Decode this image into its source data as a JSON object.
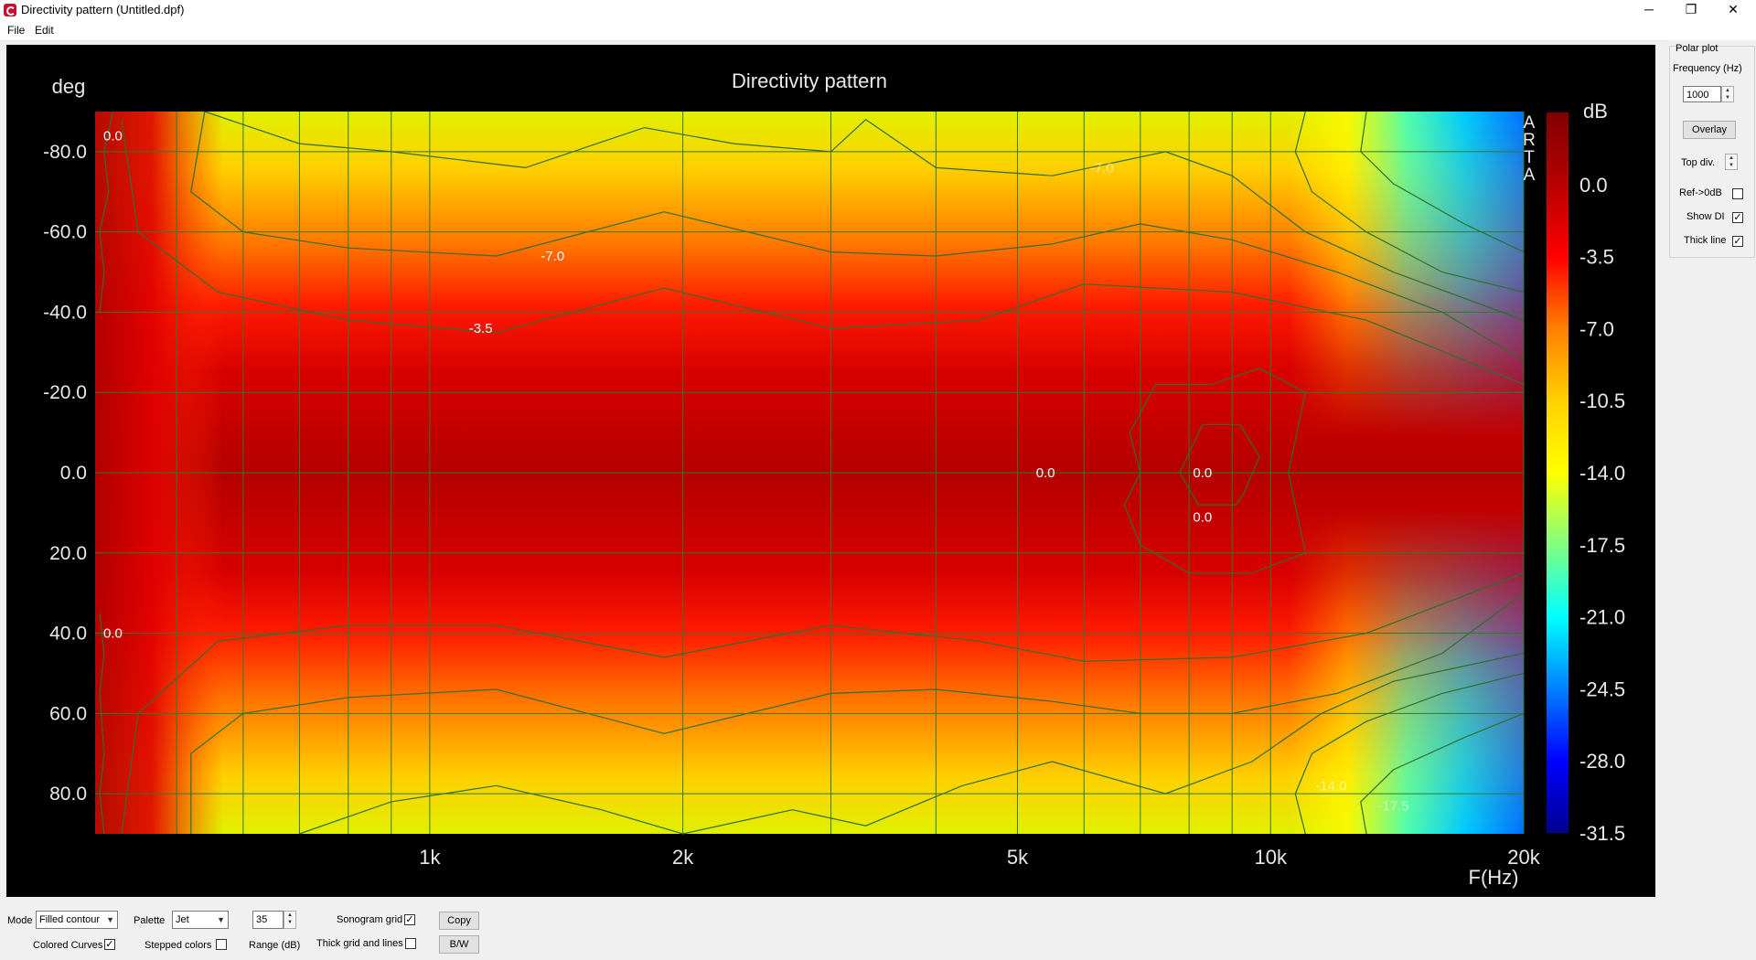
{
  "window": {
    "title": "Directivity pattern (Untitled.dpf)",
    "minimize": "─",
    "maximize": "❐",
    "close": "✕"
  },
  "menu": [
    "File",
    "Edit"
  ],
  "chart_data": {
    "type": "heatmap",
    "title": "Directivity pattern",
    "ylabel": "deg",
    "xlabel": "F(Hz)",
    "xscale": "log",
    "xlim": [
      400,
      20000
    ],
    "ylim": [
      -90,
      90
    ],
    "y_inverted": true,
    "x_ticks": [
      {
        "value": 1000,
        "label": "1k"
      },
      {
        "value": 2000,
        "label": "2k"
      },
      {
        "value": 5000,
        "label": "5k"
      },
      {
        "value": 10000,
        "label": "10k"
      },
      {
        "value": 20000,
        "label": "20k"
      }
    ],
    "x_minor_grid": [
      500,
      600,
      700,
      800,
      900,
      3000,
      4000,
      6000,
      7000,
      8000,
      9000
    ],
    "y_ticks": [
      {
        "value": -80,
        "label": "-80.0"
      },
      {
        "value": -60,
        "label": "-60.0"
      },
      {
        "value": -40,
        "label": "-40.0"
      },
      {
        "value": -20,
        "label": "-20.0"
      },
      {
        "value": 0,
        "label": "0.0"
      },
      {
        "value": 20,
        "label": "20.0"
      },
      {
        "value": 40,
        "label": "40.0"
      },
      {
        "value": 60,
        "label": "60.0"
      },
      {
        "value": 80,
        "label": "80.0"
      }
    ],
    "colorbar": {
      "unit": "dB",
      "range": [
        -31.5,
        3.5
      ],
      "ticks": [
        "0.0",
        "-3.5",
        "-7.0",
        "-10.5",
        "-14.0",
        "-17.5",
        "-21.0",
        "-24.5",
        "-28.0",
        "-31.5"
      ],
      "tick_values": [
        0,
        -3.5,
        -7,
        -10.5,
        -14,
        -17.5,
        -21,
        -24.5,
        -28,
        -31.5
      ],
      "palette": [
        "#800000",
        "#b80000",
        "#ff0000",
        "#ff8000",
        "#ffd000",
        "#ffff00",
        "#80ff80",
        "#00ffff",
        "#0080ff",
        "#0000ff",
        "#00008f"
      ]
    },
    "watermark": "ARTA",
    "contour_labels": [
      {
        "text": "0.0",
        "f": 420,
        "deg": -84
      },
      {
        "text": "-7.0",
        "f": 1400,
        "deg": -54
      },
      {
        "text": "-3.5",
        "f": 1150,
        "deg": -36
      },
      {
        "text": "0.0",
        "f": 5400,
        "deg": 0
      },
      {
        "text": "0.0",
        "f": 8300,
        "deg": 0
      },
      {
        "text": "0.0",
        "f": 8300,
        "deg": 11
      },
      {
        "text": "0.0",
        "f": 420,
        "deg": 40
      },
      {
        "text": "-7.0",
        "f": 6300,
        "deg": -76
      },
      {
        "text": "-14.0",
        "f": 11800,
        "deg": 78
      },
      {
        "text": "-17.5",
        "f": 14000,
        "deg": 83
      }
    ],
    "contour_color": "#2e6e2e",
    "grid_color": "#2e7a2e"
  },
  "polar": {
    "group_label": "Polar plot",
    "freq_label": "Frequency (Hz)",
    "freq_value": "1000",
    "overlay": "Overlay",
    "top_div": "Top div.",
    "ref_0db": "Ref->0dB",
    "ref_0db_checked": false,
    "show_di": "Show DI",
    "show_di_checked": true,
    "thick_line": "Thick line",
    "thick_line_checked": true
  },
  "bottom": {
    "mode_label": "Mode",
    "mode_value": "Filled contour",
    "palette_label": "Palette",
    "palette_value": "Jet",
    "range_value": "35",
    "range_label": "Range (dB)",
    "sonogram_grid": "Sonogram grid",
    "sonogram_grid_checked": true,
    "thick_grid": "Thick grid and  lines",
    "thick_grid_checked": false,
    "colored_curves": "Colored Curves",
    "colored_curves_checked": true,
    "stepped_colors": "Stepped colors",
    "stepped_colors_checked": false,
    "copy": "Copy",
    "bw": "B/W"
  },
  "checkmark": "✓"
}
